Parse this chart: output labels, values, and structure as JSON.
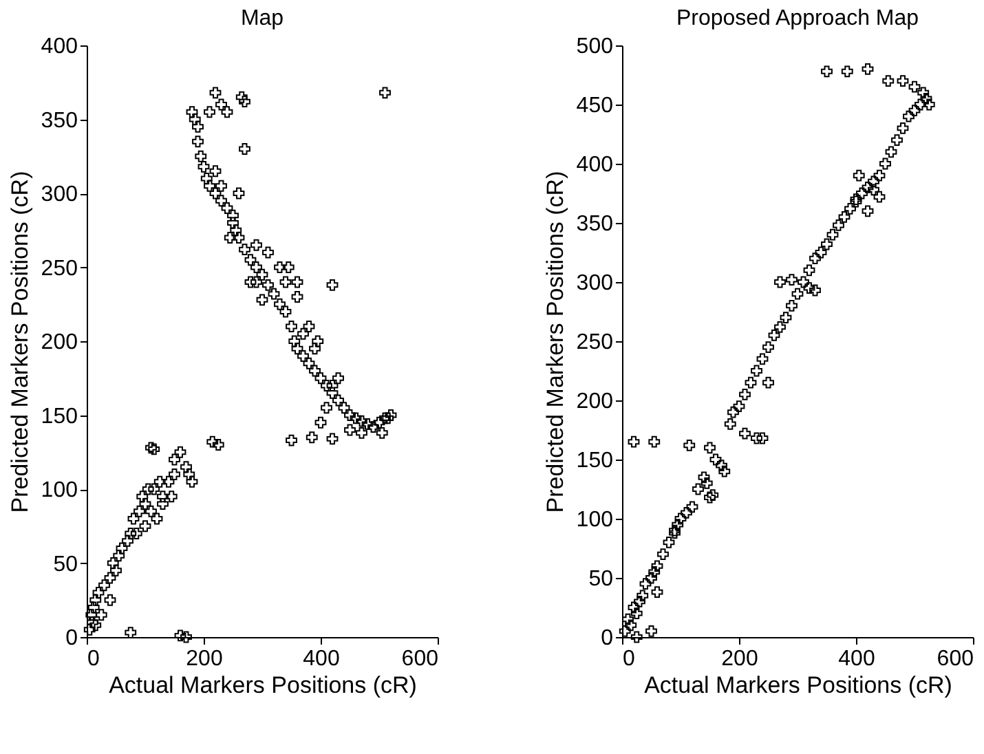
{
  "chart_data": [
    {
      "type": "scatter",
      "title": "Map",
      "xlabel": "Actual Markers Positions (cR)",
      "ylabel": "Predicted Markers Positions (cR)",
      "xlim": [
        0,
        600
      ],
      "ylim": [
        0,
        400
      ],
      "xticks": [
        0,
        200,
        400,
        600
      ],
      "yticks": [
        0,
        50,
        100,
        150,
        200,
        250,
        300,
        350,
        400
      ],
      "grid": false,
      "marker": "cross",
      "series": [
        {
          "color": "#000000",
          "x": [
            5,
            10,
            8,
            15,
            12,
            20,
            15,
            30,
            40,
            50,
            45,
            55,
            60,
            70,
            75,
            80,
            90,
            100,
            95,
            105,
            115,
            125,
            130,
            140,
            150,
            150,
            160,
            170,
            175,
            180,
            145,
            110,
            100,
            85,
            120,
            130,
            110,
            115,
            215,
            225,
            75,
            160,
            170,
            40,
            25,
            180,
            185,
            190,
            190,
            195,
            200,
            205,
            210,
            220,
            230,
            240,
            230,
            220,
            250,
            255,
            260,
            270,
            280,
            290,
            300,
            310,
            320,
            330,
            340,
            350,
            355,
            360,
            370,
            380,
            390,
            400,
            410,
            420,
            430,
            440,
            450,
            460,
            470,
            480,
            490,
            500,
            510,
            520,
            515,
            345,
            360,
            310,
            290,
            330,
            280,
            300,
            380,
            370,
            420,
            430,
            410,
            400,
            450,
            470,
            505,
            350,
            385,
            420,
            510,
            220,
            265,
            270,
            210,
            230,
            240,
            270,
            260,
            250,
            245,
            420,
            290,
            390,
            395,
            360,
            340
          ],
          "values": [
            5,
            10,
            15,
            8,
            20,
            30,
            25,
            35,
            40,
            45,
            50,
            55,
            60,
            65,
            70,
            80,
            85,
            90,
            95,
            100,
            100,
            105,
            95,
            105,
            110,
            120,
            125,
            115,
            110,
            105,
            95,
            85,
            75,
            70,
            80,
            90,
            128,
            127,
            132,
            130,
            3,
            1,
            0,
            25,
            15,
            355,
            350,
            345,
            335,
            325,
            318,
            310,
            305,
            300,
            295,
            290,
            305,
            315,
            285,
            275,
            270,
            262,
            255,
            250,
            245,
            238,
            232,
            225,
            220,
            210,
            200,
            195,
            190,
            185,
            180,
            175,
            170,
            165,
            160,
            155,
            150,
            148,
            146,
            144,
            142,
            145,
            148,
            150,
            148,
            250,
            240,
            260,
            265,
            250,
            240,
            228,
            210,
            205,
            170,
            175,
            155,
            145,
            140,
            138,
            138,
            133,
            135,
            134,
            368,
            368,
            365,
            362,
            355,
            360,
            355,
            330,
            300,
            280,
            270,
            238,
            240,
            195,
            200,
            230,
            240
          ]
        }
      ]
    },
    {
      "type": "scatter",
      "title": "Proposed Approach Map",
      "xlabel": "Actual Markers Positions (cR)",
      "ylabel": "Predicted Markers Positions (cR)",
      "xlim": [
        0,
        600
      ],
      "ylim": [
        0,
        500
      ],
      "xticks": [
        0,
        200,
        400,
        600
      ],
      "yticks": [
        0,
        50,
        100,
        150,
        200,
        250,
        300,
        350,
        400,
        450,
        500
      ],
      "grid": false,
      "marker": "cross",
      "series": [
        {
          "color": "#000000",
          "x": [
            5,
            10,
            15,
            20,
            25,
            30,
            35,
            40,
            50,
            55,
            60,
            70,
            80,
            90,
            95,
            100,
            110,
            120,
            130,
            140,
            145,
            150,
            155,
            160,
            170,
            175,
            20,
            55,
            115,
            150,
            185,
            190,
            200,
            210,
            220,
            230,
            240,
            250,
            260,
            270,
            280,
            290,
            300,
            310,
            320,
            330,
            340,
            350,
            360,
            370,
            380,
            390,
            400,
            410,
            420,
            430,
            440,
            450,
            460,
            470,
            480,
            490,
            500,
            510,
            520,
            525,
            515,
            500,
            480,
            455,
            420,
            385,
            350,
            270,
            290,
            320,
            330,
            210,
            230,
            240,
            250,
            405,
            430,
            440,
            420,
            400,
            50,
            25,
            60,
            90
          ],
          "values": [
            5,
            15,
            10,
            25,
            20,
            30,
            35,
            45,
            50,
            55,
            60,
            70,
            80,
            90,
            95,
            100,
            105,
            110,
            125,
            135,
            130,
            118,
            120,
            150,
            145,
            140,
            165,
            165,
            162,
            160,
            180,
            190,
            195,
            205,
            215,
            225,
            235,
            245,
            255,
            262,
            270,
            280,
            290,
            300,
            310,
            320,
            325,
            332,
            340,
            348,
            355,
            362,
            368,
            375,
            380,
            385,
            390,
            400,
            410,
            420,
            430,
            440,
            445,
            450,
            455,
            450,
            460,
            465,
            470,
            470,
            480,
            478,
            478,
            300,
            302,
            295,
            293,
            172,
            168,
            168,
            215,
            390,
            378,
            372,
            360,
            370,
            5,
            0,
            38,
            88
          ]
        }
      ]
    }
  ]
}
